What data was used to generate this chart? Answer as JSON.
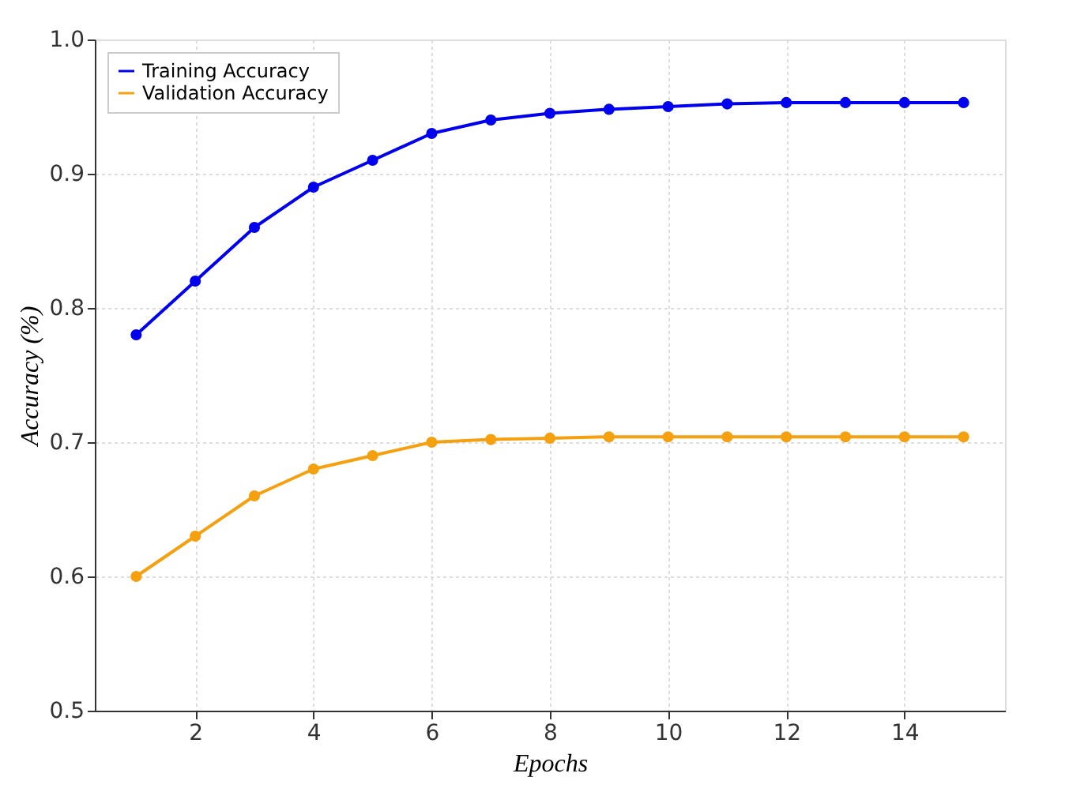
{
  "chart_data": {
    "type": "line",
    "xlabel": "Epochs",
    "ylabel": "Accuracy (%)",
    "x": [
      1,
      2,
      3,
      4,
      5,
      6,
      7,
      8,
      9,
      10,
      11,
      12,
      13,
      14,
      15
    ],
    "series": [
      {
        "name": "Training Accuracy",
        "color": "#0000ee",
        "values": [
          0.78,
          0.82,
          0.86,
          0.89,
          0.91,
          0.93,
          0.94,
          0.945,
          0.948,
          0.95,
          0.952,
          0.953,
          0.953,
          0.953,
          0.953
        ]
      },
      {
        "name": "Validation Accuracy",
        "color": "#f5a00f",
        "values": [
          0.6,
          0.63,
          0.66,
          0.68,
          0.69,
          0.7,
          0.702,
          0.703,
          0.704,
          0.704,
          0.704,
          0.704,
          0.704,
          0.704,
          0.704
        ]
      }
    ],
    "xlim": [
      0.3,
      15.7
    ],
    "xticks": [
      2,
      4,
      6,
      8,
      10,
      12,
      14
    ],
    "ylim": [
      0.5,
      1.0
    ],
    "yticks": [
      0.5,
      0.6,
      0.7,
      0.8,
      0.9,
      {
        "value": 1.0,
        "label": "1.0"
      }
    ],
    "grid": true,
    "legend": "top left",
    "marker": "circle",
    "line_style": "solid"
  }
}
